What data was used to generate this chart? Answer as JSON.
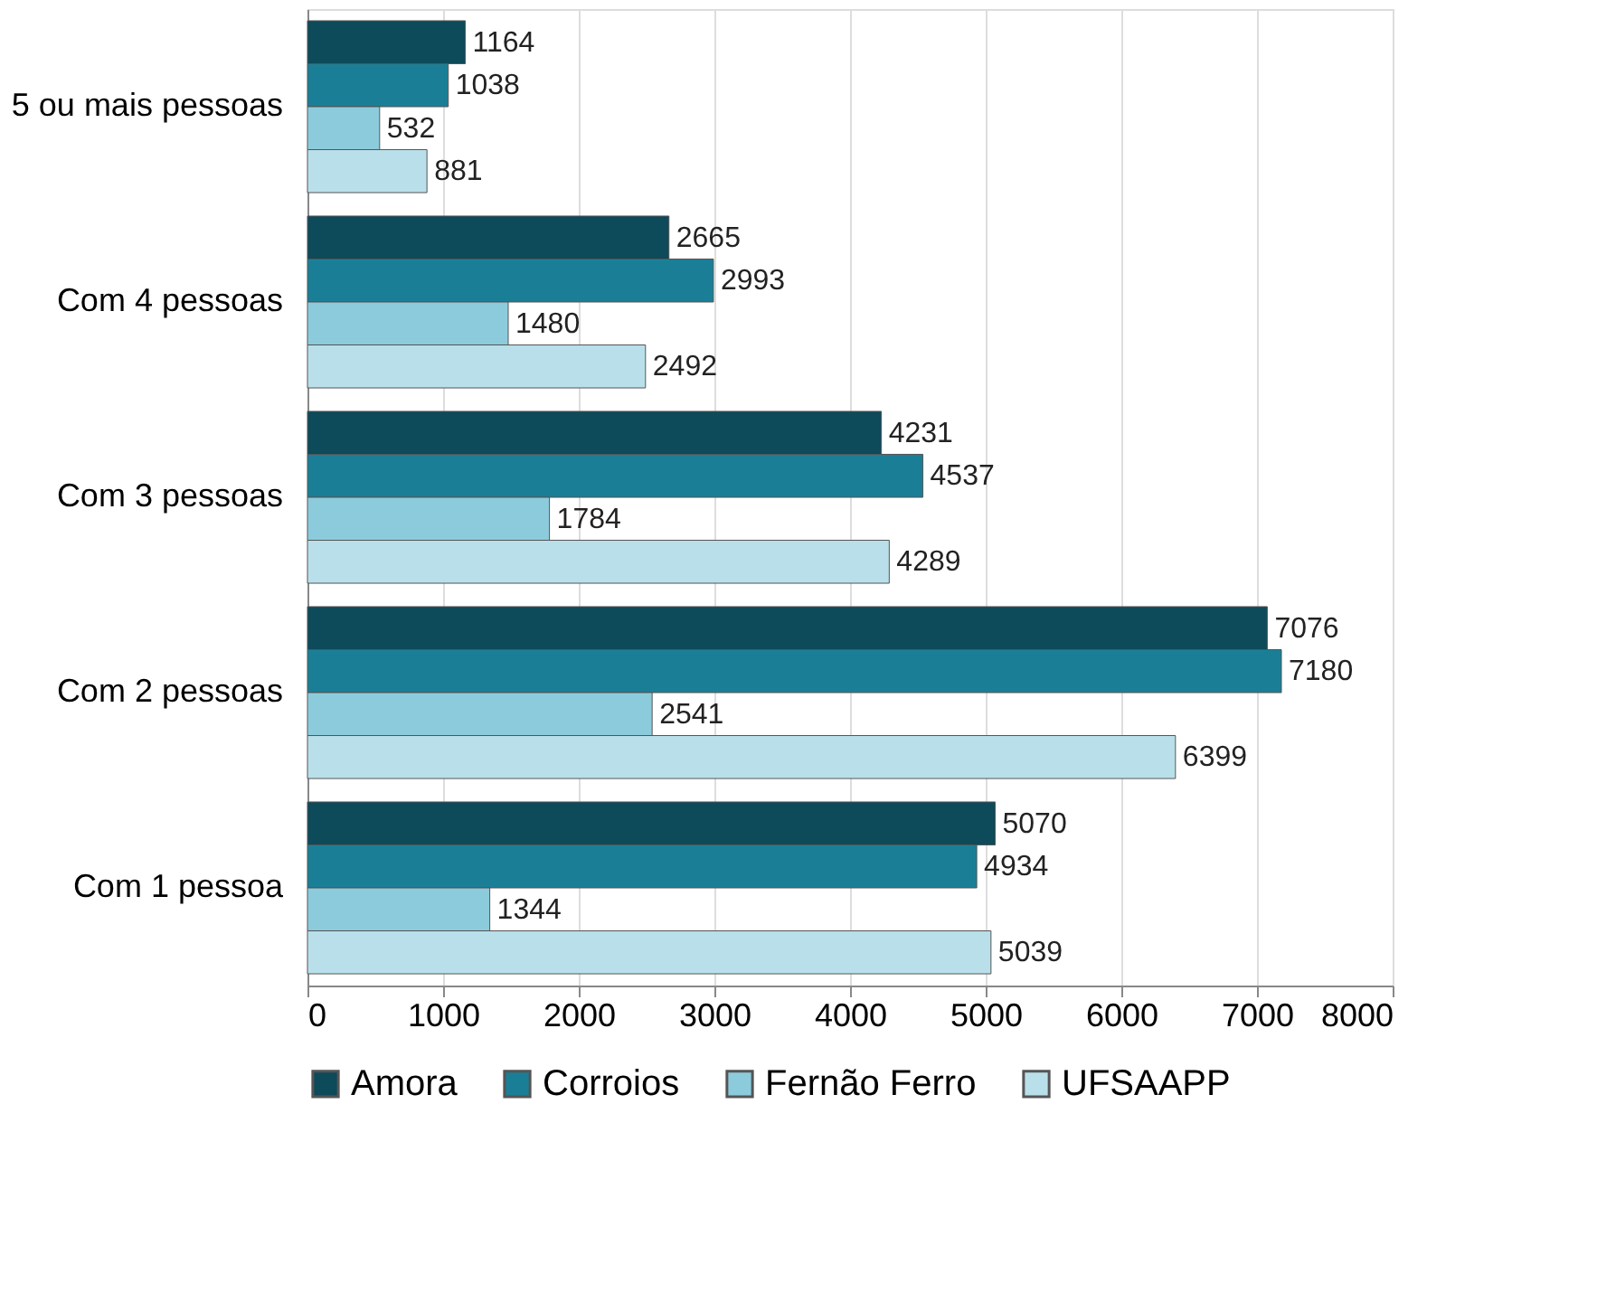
{
  "chart_data": {
    "type": "bar",
    "orientation": "horizontal",
    "categories": [
      "5 ou mais pessoas",
      "Com 4 pessoas",
      "Com 3 pessoas",
      "Com 2 pessoas",
      "Com 1 pessoa"
    ],
    "series": [
      {
        "name": "Amora",
        "color": "#0d4a5a",
        "values": [
          1164,
          2665,
          4231,
          7076,
          5070
        ]
      },
      {
        "name": "Corroios",
        "color": "#1a7f96",
        "values": [
          1038,
          2993,
          4537,
          7180,
          4934
        ]
      },
      {
        "name": "Fernão Ferro",
        "color": "#8ccbdc",
        "values": [
          532,
          1480,
          1784,
          2541,
          1344
        ]
      },
      {
        "name": "UFSAAPP",
        "color": "#b9e0ea",
        "values": [
          881,
          2492,
          4289,
          6399,
          5039
        ]
      }
    ],
    "xlim": [
      0,
      8000
    ],
    "xticks": [
      0,
      1000,
      2000,
      3000,
      4000,
      5000,
      6000,
      7000,
      8000
    ],
    "grid": "x",
    "legend": "bottom",
    "data_labels": true
  }
}
